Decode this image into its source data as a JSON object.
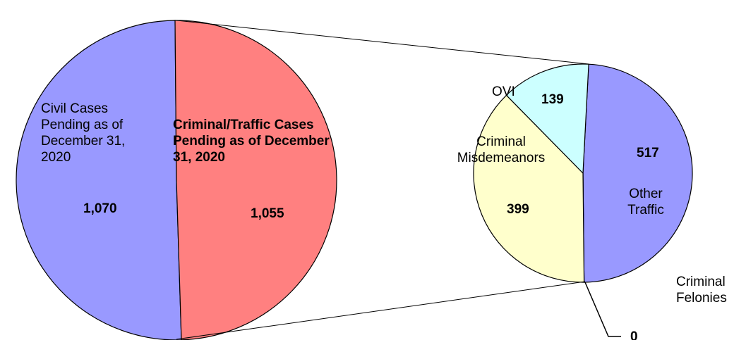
{
  "chart_data": [
    {
      "type": "pie",
      "categories": [
        "Civil Cases Pending as of December 31, 2020",
        "Criminal/Traffic Cases Pending as of December 31, 2020"
      ],
      "values": [
        1070,
        1055
      ],
      "value_labels": [
        "1,070",
        "1,055"
      ],
      "colors": [
        "#9999ff",
        "#ff8080"
      ]
    },
    {
      "type": "pie",
      "categories": [
        "Other Traffic",
        "Criminal Felonies",
        "Criminal Misdemeanors",
        "OVI"
      ],
      "values": [
        517,
        0,
        399,
        139
      ],
      "colors": [
        "#9999ff",
        "#993366",
        "#ffffcc",
        "#ccffff"
      ]
    }
  ]
}
